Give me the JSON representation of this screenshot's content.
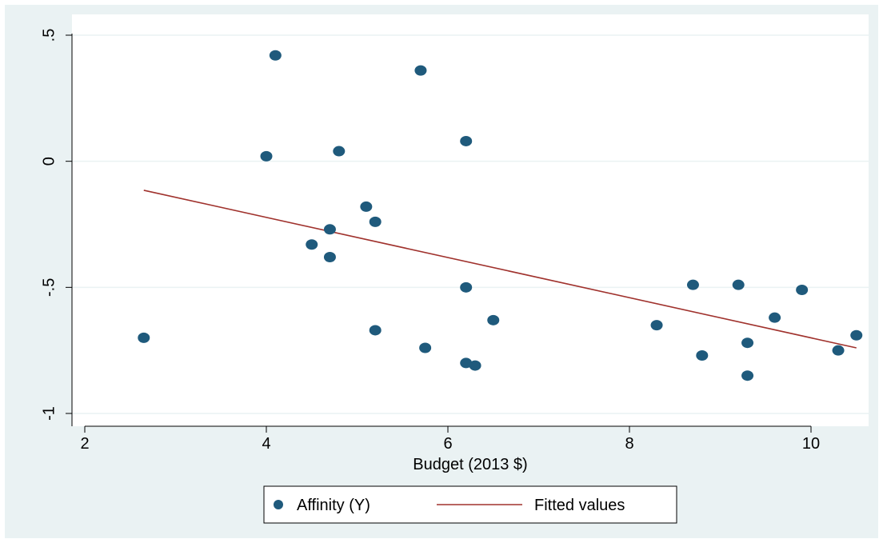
{
  "chart_data": {
    "type": "scatter",
    "title": "",
    "xlabel": "Budget (2013 $)",
    "ylabel": "",
    "xlim": [
      2,
      10.6
    ],
    "ylim": [
      -1,
      0.5
    ],
    "xticks": [
      {
        "value": 2,
        "label": "2"
      },
      {
        "value": 4,
        "label": "4"
      },
      {
        "value": 6,
        "label": "6"
      },
      {
        "value": 8,
        "label": "8"
      },
      {
        "value": 10,
        "label": "10"
      }
    ],
    "yticks": [
      {
        "value": -1,
        "label": "-1"
      },
      {
        "value": -0.5,
        "label": "-.5"
      },
      {
        "value": 0,
        "label": "0"
      },
      {
        "value": 0.5,
        "label": ".5"
      }
    ],
    "grid": true,
    "legend_position": "bottom",
    "series": [
      {
        "name": "Affinity (Y)",
        "kind": "scatter",
        "color": "#1f5a7c",
        "points": [
          {
            "x": 2.65,
            "y": -0.7
          },
          {
            "x": 4.0,
            "y": 0.02
          },
          {
            "x": 4.1,
            "y": 0.42
          },
          {
            "x": 4.5,
            "y": -0.33
          },
          {
            "x": 4.7,
            "y": -0.27
          },
          {
            "x": 4.7,
            "y": -0.38
          },
          {
            "x": 4.8,
            "y": 0.04
          },
          {
            "x": 5.1,
            "y": -0.18
          },
          {
            "x": 5.2,
            "y": -0.24
          },
          {
            "x": 5.2,
            "y": -0.67
          },
          {
            "x": 5.7,
            "y": 0.36
          },
          {
            "x": 5.75,
            "y": -0.74
          },
          {
            "x": 6.2,
            "y": 0.08
          },
          {
            "x": 6.2,
            "y": -0.5
          },
          {
            "x": 6.2,
            "y": -0.8
          },
          {
            "x": 6.3,
            "y": -0.81
          },
          {
            "x": 6.5,
            "y": -0.63
          },
          {
            "x": 8.3,
            "y": -0.65
          },
          {
            "x": 8.7,
            "y": -0.49
          },
          {
            "x": 8.8,
            "y": -0.77
          },
          {
            "x": 9.2,
            "y": -0.49
          },
          {
            "x": 9.3,
            "y": -0.72
          },
          {
            "x": 9.3,
            "y": -0.85
          },
          {
            "x": 9.6,
            "y": -0.62
          },
          {
            "x": 9.9,
            "y": -0.51
          },
          {
            "x": 10.3,
            "y": -0.75
          },
          {
            "x": 10.5,
            "y": -0.69
          }
        ]
      },
      {
        "name": "Fitted values",
        "kind": "line",
        "color": "#a0322d",
        "points": [
          {
            "x": 2.65,
            "y": -0.115
          },
          {
            "x": 10.5,
            "y": -0.74
          }
        ]
      }
    ],
    "colors": {
      "outer_background": "#eaf2f3",
      "plot_background": "#ffffff",
      "grid": "#eaf2f3"
    }
  }
}
